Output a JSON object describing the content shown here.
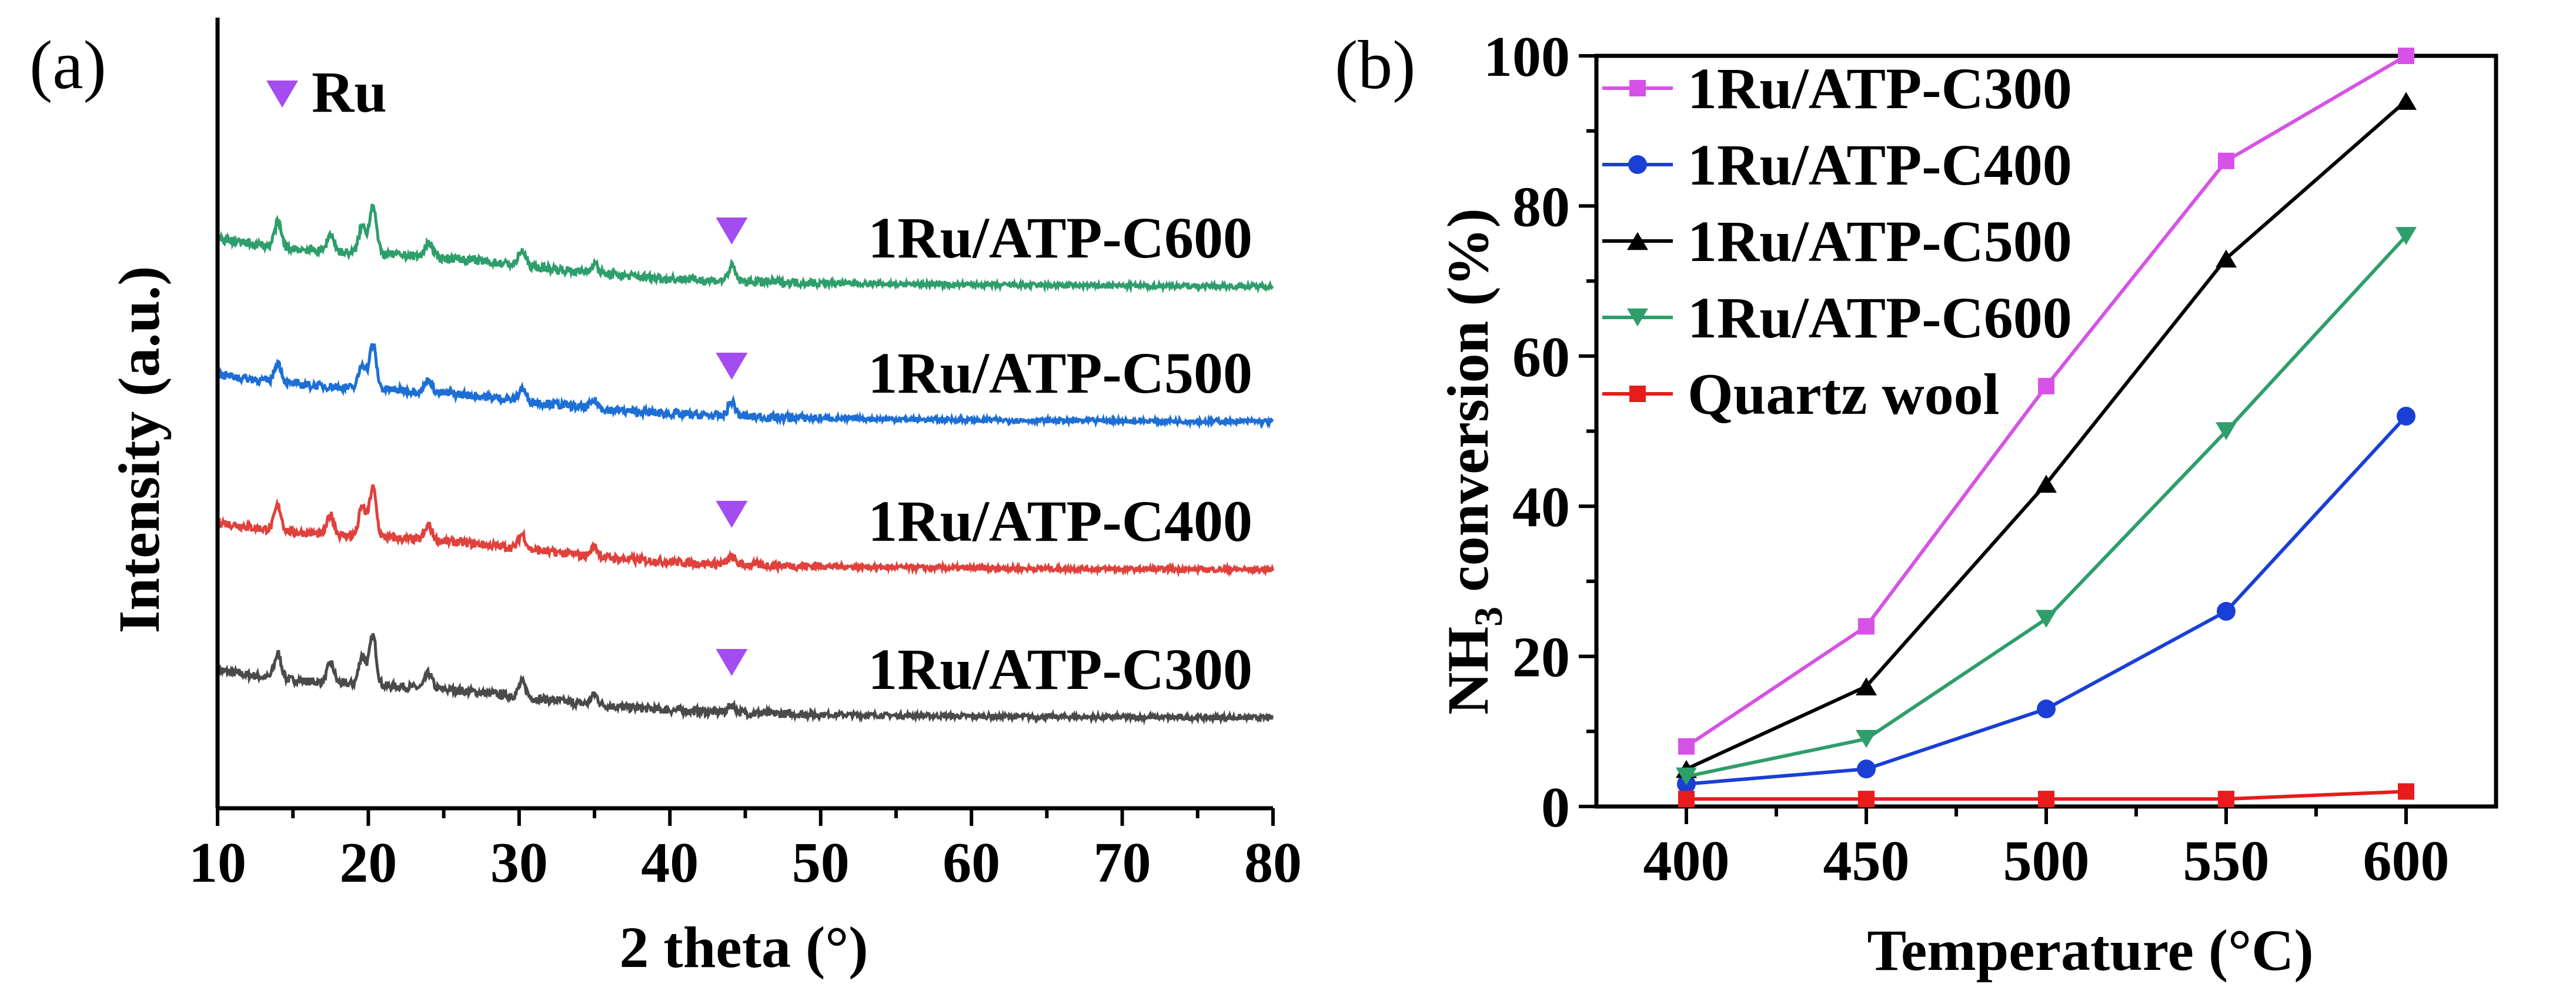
{
  "chart_data": [
    {
      "type": "line",
      "panel_label": "(a)",
      "title": "",
      "xlabel": "2 theta (°)",
      "ylabel": "Intensity (a.u.)",
      "xlim": [
        10,
        80
      ],
      "x_ticks": [
        "10",
        "20",
        "30",
        "40",
        "50",
        "60",
        "70",
        "80"
      ],
      "y_ticks": [],
      "marker_legend": {
        "symbol": "▼",
        "label": "Ru",
        "color": "#a34cf0"
      },
      "series": [
        {
          "name": "1Ru/ATP-C300",
          "color": "#4a4a4a",
          "offset": 0,
          "peaks": [
            {
              "x": 14.0,
              "h": 10
            },
            {
              "x": 17.5,
              "h": 8
            },
            {
              "x": 19.6,
              "h": 12
            },
            {
              "x": 20.3,
              "h": 20
            },
            {
              "x": 24.0,
              "h": 6
            },
            {
              "x": 30.2,
              "h": 6
            },
            {
              "x": 35.0,
              "h": 4
            },
            {
              "x": 44.1,
              "h": 3
            }
          ],
          "reflection_marker_x": 44.1
        },
        {
          "name": "1Ru/ATP-C400",
          "color": "#e0413c",
          "offset": 1,
          "peaks": [
            {
              "x": 14.0,
              "h": 10
            },
            {
              "x": 17.5,
              "h": 8
            },
            {
              "x": 19.6,
              "h": 12
            },
            {
              "x": 20.3,
              "h": 20
            },
            {
              "x": 24.0,
              "h": 6
            },
            {
              "x": 30.2,
              "h": 6
            },
            {
              "x": 35.0,
              "h": 4
            },
            {
              "x": 44.1,
              "h": 3
            }
          ],
          "reflection_marker_x": 44.1
        },
        {
          "name": "1Ru/ATP-C500",
          "color": "#1d6fd6",
          "offset": 2,
          "peaks": [
            {
              "x": 14.0,
              "h": 8
            },
            {
              "x": 19.6,
              "h": 10
            },
            {
              "x": 20.3,
              "h": 18
            },
            {
              "x": 24.0,
              "h": 5
            },
            {
              "x": 30.2,
              "h": 5
            },
            {
              "x": 35.0,
              "h": 3
            },
            {
              "x": 44.1,
              "h": 6
            }
          ],
          "reflection_marker_x": 44.1
        },
        {
          "name": "1Ru/ATP-C600",
          "color": "#2e9e6b",
          "offset": 3,
          "peaks": [
            {
              "x": 14.0,
              "h": 10
            },
            {
              "x": 17.5,
              "h": 7
            },
            {
              "x": 19.6,
              "h": 11
            },
            {
              "x": 20.3,
              "h": 20
            },
            {
              "x": 24.0,
              "h": 6
            },
            {
              "x": 30.2,
              "h": 6
            },
            {
              "x": 35.0,
              "h": 4
            },
            {
              "x": 44.1,
              "h": 6
            }
          ],
          "reflection_marker_x": 44.1
        }
      ]
    },
    {
      "type": "line",
      "panel_label": "(b)",
      "title": "",
      "xlabel": "Temperature (°C)",
      "ylabel_main": "NH",
      "ylabel_sub": "3",
      "ylabel_rest": " conversion (%)",
      "xlim": [
        375,
        625
      ],
      "ylim": [
        0,
        100
      ],
      "x_ticks": [
        400,
        450,
        500,
        550,
        600
      ],
      "y_ticks": [
        0,
        20,
        40,
        60,
        80,
        100
      ],
      "x": [
        400,
        450,
        500,
        550,
        600
      ],
      "legend_position": "top-left",
      "series": [
        {
          "name": "1Ru/ATP-C300",
          "color": "#d652e6",
          "marker": "square",
          "values": [
            8,
            24,
            56,
            86,
            100
          ]
        },
        {
          "name": "1Ru/ATP-C400",
          "color": "#1a3fd6",
          "marker": "circle",
          "values": [
            3,
            5,
            13,
            26,
            52
          ]
        },
        {
          "name": "1Ru/ATP-C500",
          "color": "#000000",
          "marker": "triangle-up",
          "values": [
            5,
            16,
            43,
            73,
            94
          ]
        },
        {
          "name": "1Ru/ATP-C600",
          "color": "#2e9e6b",
          "marker": "triangle-down",
          "values": [
            4,
            9,
            25,
            50,
            76
          ]
        },
        {
          "name": "Quartz wool",
          "color": "#e81c1c",
          "marker": "square",
          "values": [
            1,
            1,
            1,
            1,
            2
          ]
        }
      ]
    }
  ]
}
